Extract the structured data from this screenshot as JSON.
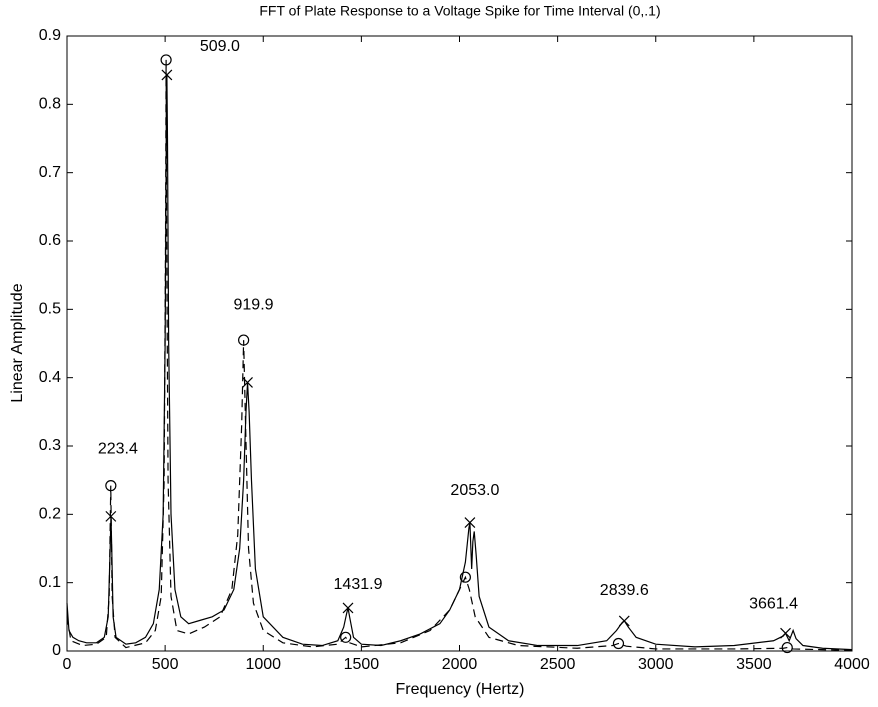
{
  "chart_data": {
    "type": "line",
    "title": "FFT of Plate Response to a Voltage Spike for Time Interval (0,.1)",
    "xlabel": "Frequency (Hertz)",
    "ylabel": "Linear Amplitude",
    "xlim": [
      0,
      4000
    ],
    "ylim": [
      0,
      0.9
    ],
    "xticks": [
      0,
      500,
      1000,
      1500,
      2000,
      2500,
      3000,
      3500,
      4000
    ],
    "yticks": [
      0,
      0.1,
      0.2,
      0.3,
      0.4,
      0.5,
      0.6,
      0.7,
      0.8,
      0.9
    ],
    "grid": false,
    "series": [
      {
        "color": "#000000",
        "style": "solid",
        "x": [
          0,
          10,
          30,
          60,
          100,
          150,
          190,
          210,
          220,
          224,
          228,
          235,
          250,
          300,
          350,
          400,
          440,
          470,
          490,
          500,
          506,
          509,
          512,
          518,
          530,
          550,
          580,
          620,
          680,
          740,
          800,
          850,
          880,
          900,
          912,
          920,
          928,
          940,
          960,
          1000,
          1100,
          1200,
          1300,
          1380,
          1410,
          1425,
          1432,
          1440,
          1460,
          1500,
          1600,
          1700,
          1800,
          1900,
          1950,
          2000,
          2030,
          2048,
          2053,
          2058,
          2062,
          2068,
          2075,
          2085,
          2100,
          2150,
          2250,
          2400,
          2600,
          2750,
          2800,
          2830,
          2840,
          2860,
          2900,
          3000,
          3200,
          3400,
          3600,
          3650,
          3661,
          3680,
          3700,
          3715,
          3750,
          3850,
          4000
        ],
        "values": [
          0.07,
          0.03,
          0.02,
          0.015,
          0.012,
          0.012,
          0.02,
          0.05,
          0.15,
          0.197,
          0.15,
          0.05,
          0.02,
          0.01,
          0.012,
          0.02,
          0.04,
          0.09,
          0.2,
          0.45,
          0.75,
          0.843,
          0.75,
          0.45,
          0.2,
          0.09,
          0.05,
          0.04,
          0.045,
          0.05,
          0.06,
          0.09,
          0.15,
          0.25,
          0.35,
          0.393,
          0.35,
          0.25,
          0.12,
          0.05,
          0.02,
          0.01,
          0.008,
          0.015,
          0.035,
          0.055,
          0.063,
          0.05,
          0.02,
          0.01,
          0.008,
          0.015,
          0.025,
          0.04,
          0.06,
          0.09,
          0.13,
          0.18,
          0.188,
          0.15,
          0.12,
          0.16,
          0.175,
          0.14,
          0.08,
          0.035,
          0.015,
          0.008,
          0.008,
          0.015,
          0.03,
          0.042,
          0.044,
          0.035,
          0.02,
          0.01,
          0.006,
          0.008,
          0.015,
          0.022,
          0.026,
          0.015,
          0.03,
          0.018,
          0.008,
          0.004,
          0.002
        ]
      },
      {
        "color": "#000000",
        "style": "dashed",
        "x": [
          0,
          20,
          80,
          150,
          200,
          215,
          223,
          230,
          245,
          300,
          400,
          450,
          480,
          495,
          502,
          505,
          508,
          515,
          530,
          560,
          620,
          700,
          780,
          840,
          870,
          890,
          900,
          910,
          925,
          950,
          1000,
          1100,
          1250,
          1380,
          1420,
          1440,
          1500,
          1700,
          1850,
          1950,
          2000,
          2030,
          2050,
          2080,
          2150,
          2300,
          2600,
          2780,
          2810,
          2850,
          3000,
          3400,
          3650,
          3670,
          3700,
          4000
        ],
        "values": [
          0.05,
          0.015,
          0.008,
          0.01,
          0.02,
          0.08,
          0.242,
          0.08,
          0.02,
          0.005,
          0.012,
          0.03,
          0.08,
          0.25,
          0.6,
          0.865,
          0.6,
          0.25,
          0.08,
          0.03,
          0.025,
          0.035,
          0.05,
          0.09,
          0.17,
          0.33,
          0.455,
          0.33,
          0.15,
          0.07,
          0.03,
          0.012,
          0.006,
          0.01,
          0.02,
          0.012,
          0.006,
          0.012,
          0.03,
          0.06,
          0.09,
          0.108,
          0.09,
          0.05,
          0.02,
          0.008,
          0.004,
          0.008,
          0.011,
          0.007,
          0.003,
          0.003,
          0.004,
          0.005,
          0.003,
          0.001
        ]
      },
      {
        "color": "#000000",
        "marker": "x",
        "x": [
          223.4,
          509.0,
          919.9,
          1431.9,
          2053.0,
          2839.6,
          3661.4
        ],
        "values": [
          0.197,
          0.843,
          0.393,
          0.063,
          0.188,
          0.044,
          0.026
        ]
      },
      {
        "color": "#000000",
        "marker": "o",
        "x": [
          223.4,
          505,
          900,
          1420,
          2030,
          2810,
          3670
        ],
        "values": [
          0.242,
          0.865,
          0.455,
          0.02,
          0.108,
          0.011,
          0.005
        ]
      }
    ],
    "annotations": [
      "223.4",
      "509.0",
      "919.9",
      "1431.9",
      "2053.0",
      "2839.6",
      "3661.4"
    ]
  }
}
